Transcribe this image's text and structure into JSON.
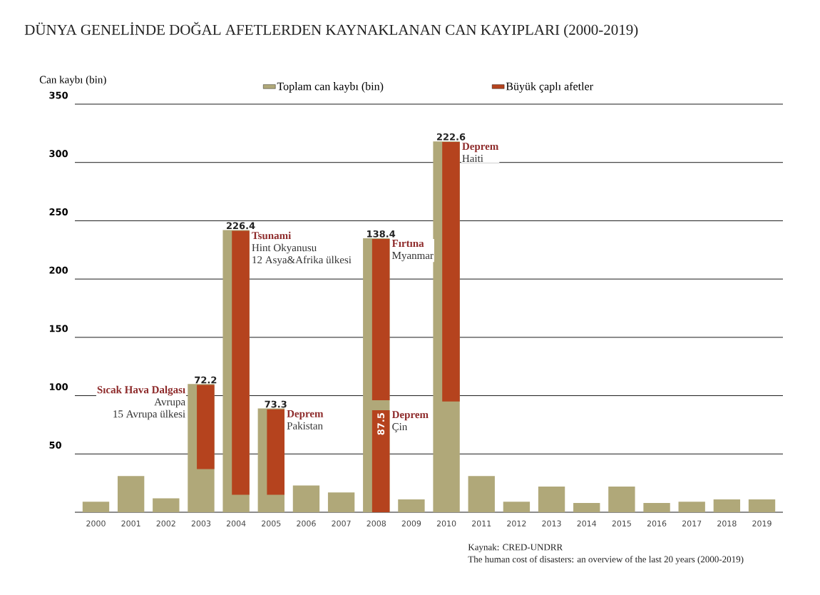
{
  "chart_data": {
    "type": "bar",
    "title": "DÜNYA GENELİNDE DOĞAL AFETLERDEN KAYNAKLANAN CAN KAYIPLARI (2000-2019)",
    "ylabel": "Can kaybı (bin)",
    "categories": [
      "2000",
      "2001",
      "2002",
      "2003",
      "2004",
      "2005",
      "2006",
      "2007",
      "2008",
      "2009",
      "2010",
      "2011",
      "2012",
      "2013",
      "2014",
      "2015",
      "2016",
      "2017",
      "2018",
      "2019"
    ],
    "series": [
      {
        "name": "Toplam can kaybı (bin)",
        "color": "#b0a879",
        "values": [
          9,
          31,
          12,
          110,
          242,
          89,
          23,
          17,
          235,
          11,
          318,
          31,
          9,
          22,
          8,
          22,
          8,
          9,
          11,
          11
        ]
      },
      {
        "name": "Büyük çaplı afetler",
        "color": "#b5431e",
        "values": [
          null,
          null,
          null,
          72.2,
          226.4,
          73.3,
          null,
          null,
          138.4,
          null,
          222.6,
          null,
          null,
          null,
          null,
          null,
          null,
          null,
          null,
          null
        ],
        "base": [
          null,
          null,
          null,
          37,
          15,
          15,
          null,
          null,
          96,
          null,
          95,
          null,
          null,
          null,
          null,
          null,
          null,
          null,
          null,
          null
        ],
        "value_labels": [
          null,
          null,
          null,
          "72.2",
          "226.4",
          "73.3",
          null,
          null,
          "138.4",
          null,
          "222.6",
          null,
          null,
          null,
          null,
          null,
          null,
          null,
          null,
          null
        ]
      },
      {
        "color": "#b5431e",
        "values": [
          null,
          null,
          null,
          null,
          null,
          null,
          null,
          null,
          87.5,
          null,
          null,
          null,
          null,
          null,
          null,
          null,
          null,
          null,
          null,
          null
        ],
        "base": [
          null,
          null,
          null,
          null,
          null,
          null,
          null,
          null,
          0,
          null,
          null,
          null,
          null,
          null,
          null,
          null,
          null,
          null,
          null,
          null
        ],
        "value_labels": [
          null,
          null,
          null,
          null,
          null,
          null,
          null,
          null,
          "87.5",
          null,
          null,
          null,
          null,
          null,
          null,
          null,
          null,
          null,
          null,
          null
        ]
      }
    ],
    "ylim": [
      0,
      350
    ],
    "yticks": [
      50,
      100,
      150,
      200,
      250,
      300,
      350
    ],
    "grid": "y",
    "legend": "top",
    "annotations": [
      {
        "text": "Sıcak Hava Dalgası",
        "x": "2003",
        "y": 109.2
      },
      {
        "text": "Avrupa",
        "x": "2003",
        "y": 109.2
      },
      {
        "text": "15 Avrupa ülkesi",
        "x": "2003",
        "y": 109.2
      },
      {
        "text": "Tsunami",
        "x": "2004",
        "y": 241.4
      },
      {
        "text": "Hint Okyanusu",
        "x": "2004",
        "y": 241.4
      },
      {
        "text": "12 Asya&Afrika ülkesi",
        "x": "2004",
        "y": 241.4
      },
      {
        "text": "Deprem",
        "x": "2005",
        "y": 88.3
      },
      {
        "text": "Pakistan",
        "x": "2005",
        "y": 88.3
      },
      {
        "text": "Deprem",
        "x": "2008",
        "y": 87.5
      },
      {
        "text": "Çin",
        "x": "2008",
        "y": 87.5
      },
      {
        "text": "Fırtına",
        "x": "2008",
        "y": 234.4
      },
      {
        "text": "Myanmar",
        "x": "2008",
        "y": 234.4
      },
      {
        "text": "Deprem",
        "x": "2010",
        "y": 317.6
      },
      {
        "text": "Haiti",
        "x": "2010",
        "y": 317.6
      },
      "Kaynak:  CRED-UNDRR",
      "The human cost of disasters: an overview of the last 20 years (2000-2019)"
    ]
  }
}
